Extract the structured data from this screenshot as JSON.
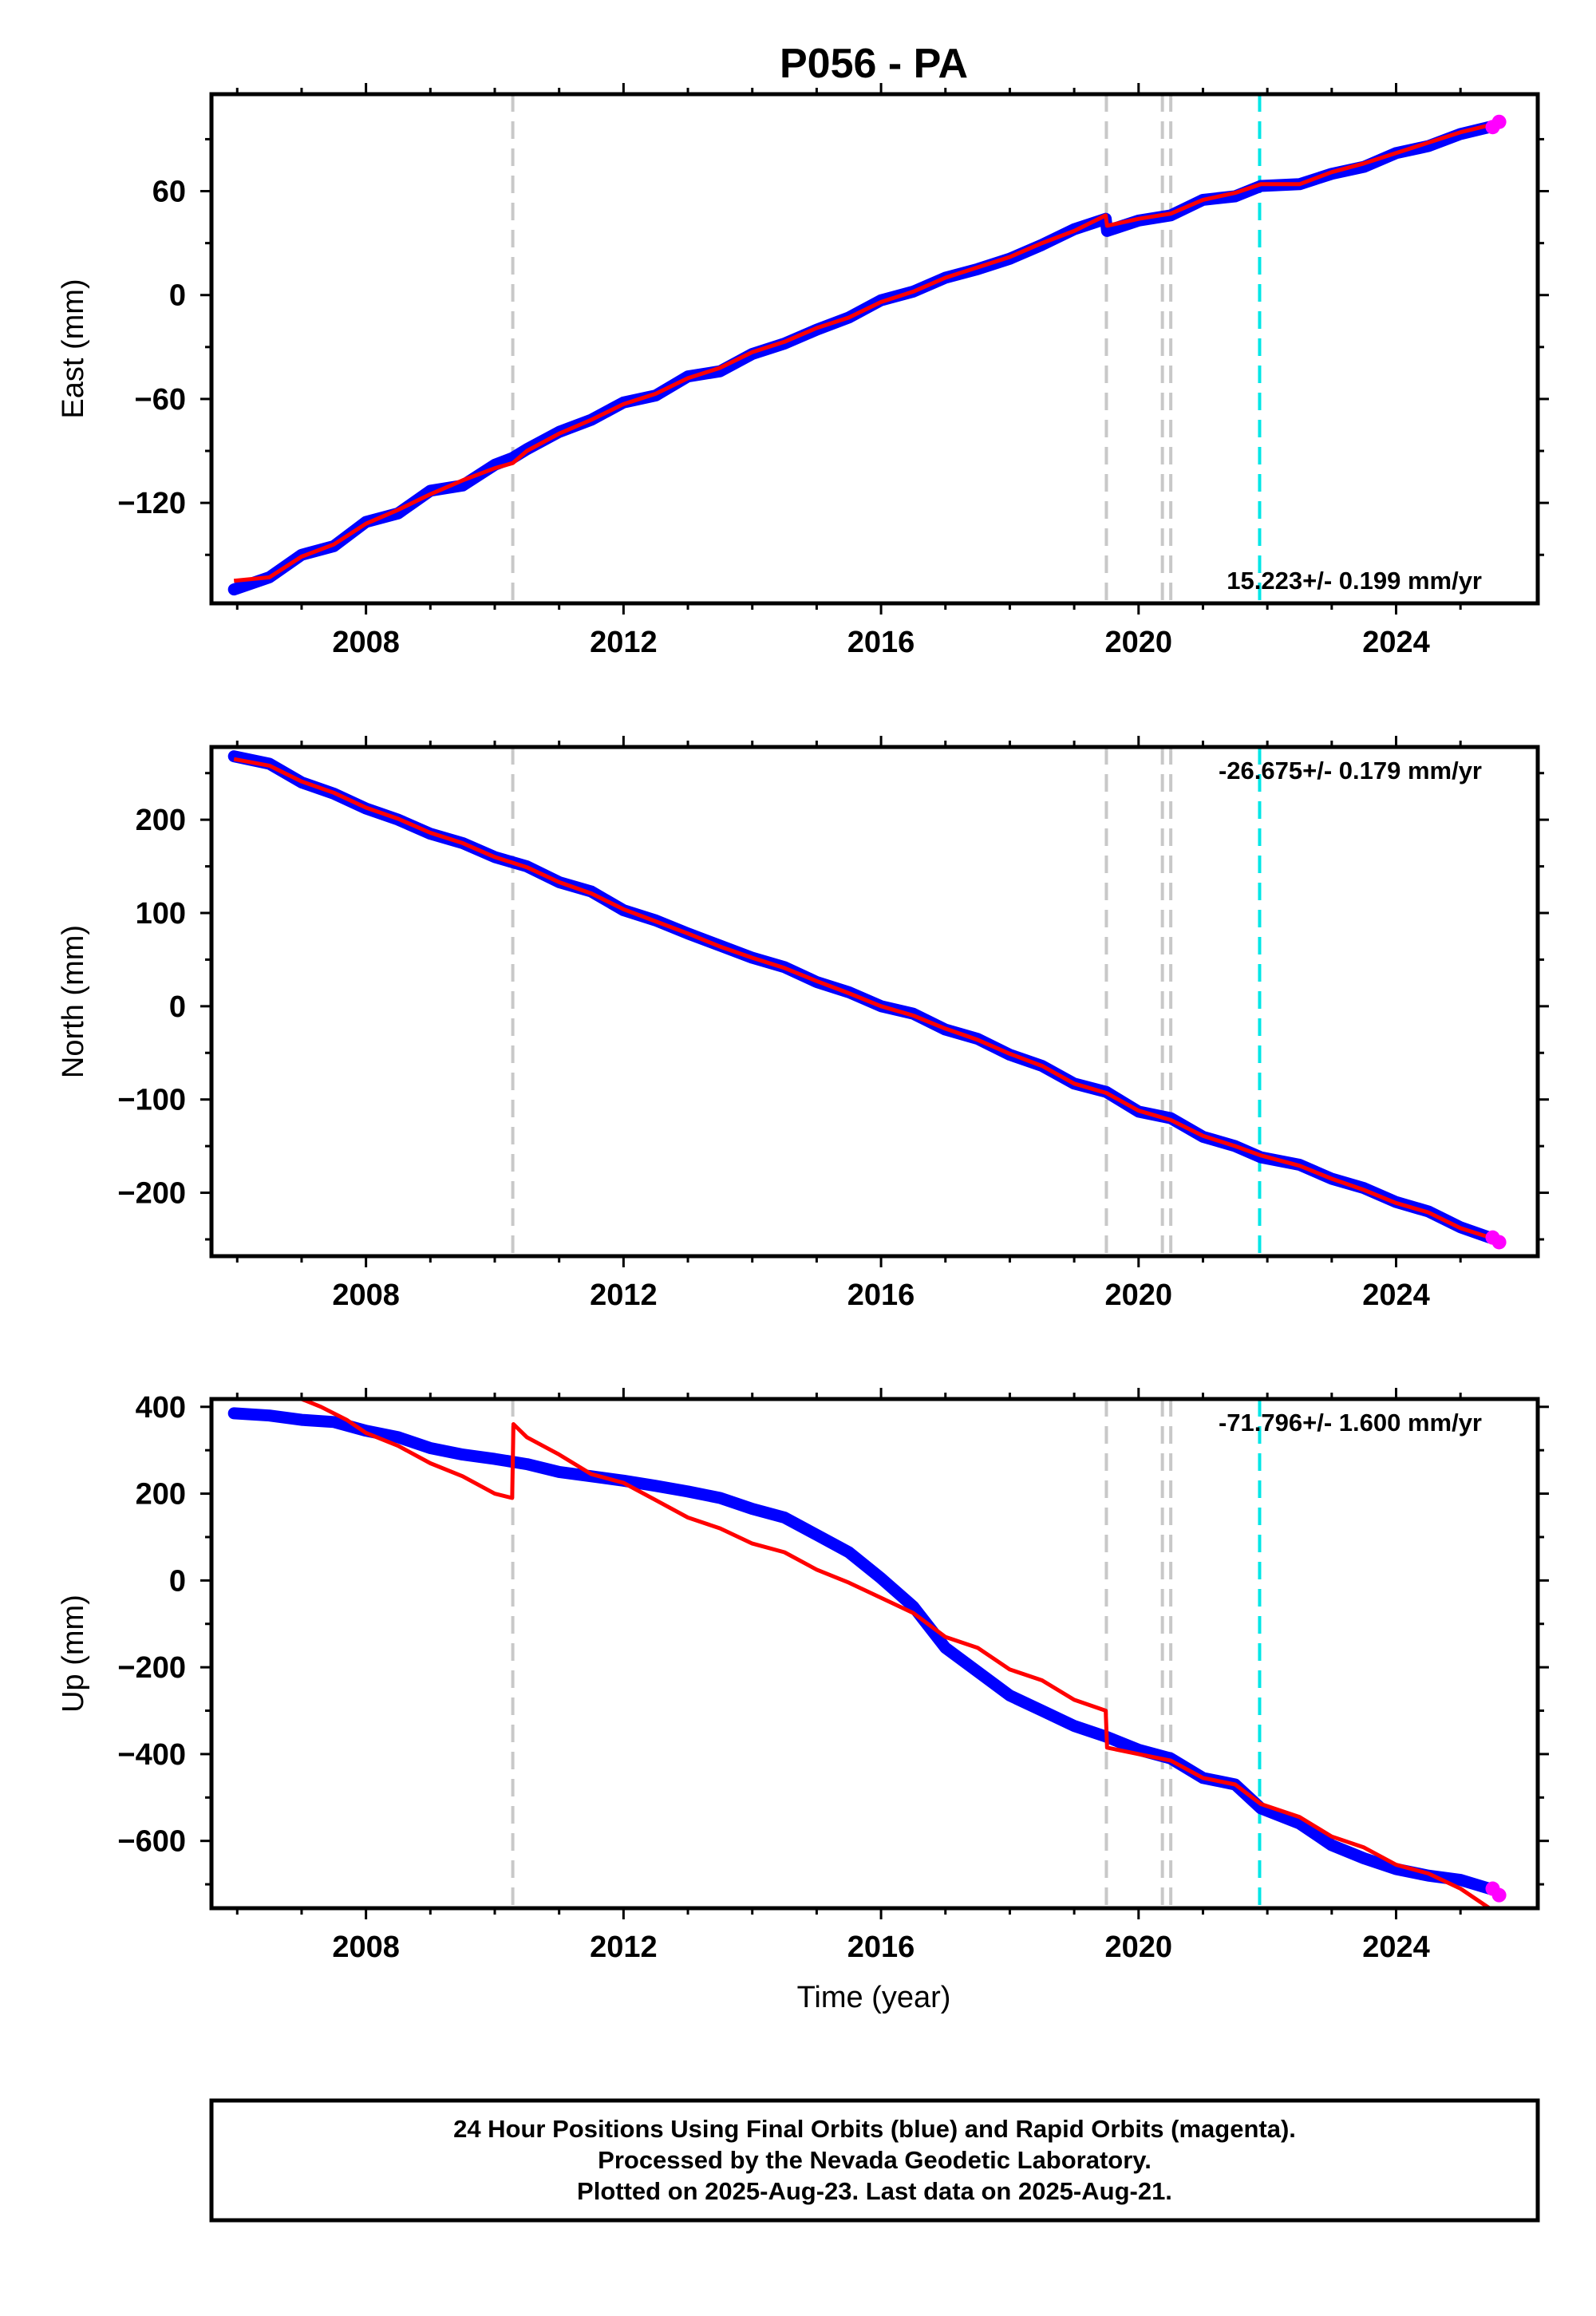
{
  "title": "P056 - PA",
  "xlabel": "Time (year)",
  "colors": {
    "final_orbits": "#0000ff",
    "rapid_orbits": "#ff00ff",
    "model": "#ff0000",
    "equipment_change": "#c8c8c8",
    "earthquake": "#00e6e6"
  },
  "footer": {
    "line1": "24 Hour Positions Using Final Orbits (blue) and Rapid Orbits (magenta).",
    "line2": "Processed by the Nevada Geodetic Laboratory.",
    "line3": "Plotted on 2025-Aug-23. Last data on 2025-Aug-21."
  },
  "chart_data": [
    {
      "type": "line",
      "ylabel": "East (mm)",
      "xlim": [
        2005.6,
        2026.2
      ],
      "ylim": [
        -178,
        116
      ],
      "xticks": [
        2008,
        2012,
        2016,
        2020,
        2024
      ],
      "yticks": [
        -120,
        -60,
        0,
        60
      ],
      "rate_label": "15.223+/- 0.199 mm/yr",
      "rate_position": "bottom-right",
      "vlines_gray": [
        2010.28,
        2019.5,
        2020.37,
        2020.5
      ],
      "vlines_cyan": [
        2021.88
      ],
      "series": [
        {
          "role": "final_orbits",
          "x": [
            2005.95,
            2006.5,
            2007.0,
            2007.5,
            2008.0,
            2008.5,
            2009.0,
            2009.5,
            2010.0,
            2010.28,
            2010.5,
            2011.0,
            2011.5,
            2012.0,
            2012.5,
            2013.0,
            2013.5,
            2014.0,
            2014.5,
            2015.0,
            2015.5,
            2016.0,
            2016.5,
            2017.0,
            2017.5,
            2018.0,
            2018.5,
            2019.0,
            2019.49,
            2019.51,
            2020.0,
            2020.5,
            2021.0,
            2021.5,
            2021.9,
            2022.5,
            2023.0,
            2023.5,
            2024.0,
            2024.5,
            2025.0,
            2025.45
          ],
          "values": [
            -170,
            -163,
            -150,
            -145,
            -131,
            -126,
            -113,
            -110,
            -98,
            -94,
            -89,
            -79,
            -72,
            -62,
            -58,
            -47,
            -44,
            -34,
            -28,
            -20,
            -13,
            -3,
            2,
            10,
            15,
            21,
            29,
            38,
            44,
            37,
            43,
            46,
            55,
            57,
            63,
            64,
            70,
            74,
            82,
            86,
            93,
            97
          ]
        },
        {
          "role": "model",
          "x": [
            2005.95,
            2006.5,
            2007.0,
            2007.5,
            2008.0,
            2008.5,
            2009.0,
            2009.5,
            2010.0,
            2010.28,
            2010.5,
            2011.0,
            2011.5,
            2012.0,
            2012.5,
            2013.0,
            2013.5,
            2014.0,
            2014.5,
            2015.0,
            2015.5,
            2016.0,
            2016.5,
            2017.0,
            2017.5,
            2018.0,
            2018.5,
            2019.0,
            2019.49,
            2019.51,
            2020.0,
            2020.5,
            2021.0,
            2021.5,
            2021.9,
            2022.5,
            2023.0,
            2023.5,
            2024.0,
            2024.5,
            2025.0,
            2025.55
          ],
          "values": [
            -165,
            -163,
            -151,
            -144,
            -132,
            -124,
            -115,
            -107,
            -100,
            -97,
            -90,
            -80,
            -72,
            -63,
            -57,
            -48,
            -42,
            -33,
            -27,
            -19,
            -13,
            -4,
            2,
            10,
            16,
            22,
            30,
            37,
            46,
            40,
            44,
            47,
            55,
            59,
            64,
            64,
            71,
            76,
            82,
            88,
            94,
            99
          ]
        },
        {
          "role": "rapid_orbits",
          "x": [
            2025.5,
            2025.6
          ],
          "values": [
            97,
            100
          ]
        }
      ]
    },
    {
      "type": "line",
      "ylabel": "North (mm)",
      "xlim": [
        2005.6,
        2026.2
      ],
      "ylim": [
        -268,
        278
      ],
      "xticks": [
        2008,
        2012,
        2016,
        2020,
        2024
      ],
      "yticks": [
        -200,
        -100,
        0,
        100,
        200
      ],
      "rate_label": "-26.675+/- 0.179 mm/yr",
      "rate_position": "top-right",
      "vlines_gray": [
        2010.28,
        2019.5,
        2020.37,
        2020.5
      ],
      "vlines_cyan": [
        2021.88
      ],
      "series": [
        {
          "role": "final_orbits",
          "x": [
            2005.95,
            2006.5,
            2007.0,
            2007.5,
            2008.0,
            2008.5,
            2009.0,
            2009.5,
            2010.0,
            2010.5,
            2011.0,
            2011.5,
            2012.0,
            2012.5,
            2013.0,
            2013.5,
            2014.0,
            2014.5,
            2015.0,
            2015.5,
            2016.0,
            2016.5,
            2017.0,
            2017.5,
            2018.0,
            2018.5,
            2019.0,
            2019.5,
            2020.0,
            2020.5,
            2021.0,
            2021.5,
            2021.9,
            2022.5,
            2023.0,
            2023.5,
            2024.0,
            2024.5,
            2025.0,
            2025.45
          ],
          "values": [
            268,
            260,
            240,
            228,
            212,
            200,
            185,
            175,
            160,
            150,
            133,
            123,
            103,
            92,
            78,
            65,
            52,
            42,
            26,
            15,
            0,
            -8,
            -25,
            -35,
            -52,
            -64,
            -83,
            -92,
            -113,
            -120,
            -140,
            -150,
            -162,
            -170,
            -185,
            -195,
            -210,
            -220,
            -237,
            -248
          ]
        },
        {
          "role": "model",
          "x": [
            2005.95,
            2006.5,
            2007.0,
            2007.5,
            2008.0,
            2008.5,
            2009.0,
            2009.5,
            2010.0,
            2010.5,
            2011.0,
            2011.5,
            2012.0,
            2012.5,
            2013.0,
            2013.5,
            2014.0,
            2014.5,
            2015.0,
            2015.5,
            2016.0,
            2016.5,
            2017.0,
            2017.5,
            2018.0,
            2018.5,
            2019.0,
            2019.5,
            2020.0,
            2020.5,
            2021.0,
            2021.5,
            2021.9,
            2022.5,
            2023.0,
            2023.5,
            2024.0,
            2024.5,
            2025.0,
            2025.55
          ],
          "values": [
            265,
            258,
            241,
            229,
            213,
            201,
            186,
            175,
            160,
            149,
            133,
            121,
            104,
            91,
            78,
            64,
            52,
            41,
            27,
            14,
            0,
            -10,
            -24,
            -36,
            -51,
            -64,
            -83,
            -93,
            -112,
            -122,
            -139,
            -150,
            -160,
            -171,
            -185,
            -197,
            -211,
            -221,
            -238,
            -250
          ]
        },
        {
          "role": "rapid_orbits",
          "x": [
            2025.5,
            2025.6
          ],
          "values": [
            -248,
            -253
          ]
        }
      ]
    },
    {
      "type": "line",
      "ylabel": "Up (mm)",
      "xlim": [
        2005.6,
        2026.2
      ],
      "ylim": [
        -755,
        418
      ],
      "xticks": [
        2008,
        2012,
        2016,
        2020,
        2024
      ],
      "yticks": [
        -600,
        -400,
        -200,
        0,
        200,
        400
      ],
      "rate_label": "-71.796+/- 1.600 mm/yr",
      "rate_position": "top-right",
      "vlines_gray": [
        2010.28,
        2019.5,
        2020.37,
        2020.5
      ],
      "vlines_cyan": [
        2021.88
      ],
      "series": [
        {
          "role": "final_orbits",
          "x": [
            2005.95,
            2006.5,
            2007.0,
            2007.5,
            2008.0,
            2008.5,
            2009.0,
            2009.5,
            2010.0,
            2010.5,
            2011.0,
            2011.5,
            2012.0,
            2012.5,
            2013.0,
            2013.5,
            2014.0,
            2014.5,
            2015.0,
            2015.5,
            2016.0,
            2016.5,
            2017.0,
            2017.5,
            2018.0,
            2018.5,
            2019.0,
            2019.5,
            2020.0,
            2020.5,
            2021.0,
            2021.5,
            2021.9,
            2022.5,
            2023.0,
            2023.5,
            2024.0,
            2024.5,
            2025.0,
            2025.45
          ],
          "values": [
            385,
            380,
            370,
            365,
            345,
            330,
            305,
            290,
            280,
            268,
            250,
            240,
            230,
            218,
            205,
            190,
            165,
            145,
            105,
            65,
            5,
            -60,
            -155,
            -210,
            -265,
            -300,
            -335,
            -360,
            -390,
            -410,
            -455,
            -470,
            -525,
            -560,
            -610,
            -640,
            -665,
            -680,
            -690,
            -710
          ]
        },
        {
          "role": "model",
          "x": [
            2005.95,
            2006.5,
            2007.0,
            2007.3,
            2007.7,
            2008.0,
            2008.5,
            2009.0,
            2009.5,
            2010.0,
            2010.27,
            2010.29,
            2010.5,
            2011.0,
            2011.5,
            2012.0,
            2012.5,
            2013.0,
            2013.5,
            2014.0,
            2014.5,
            2015.0,
            2015.5,
            2016.0,
            2016.5,
            2017.0,
            2017.5,
            2018.0,
            2018.5,
            2019.0,
            2019.49,
            2019.51,
            2020.0,
            2020.5,
            2021.0,
            2021.5,
            2021.9,
            2022.5,
            2023.0,
            2023.5,
            2024.0,
            2024.5,
            2025.0,
            2025.5
          ],
          "values": [
            430,
            425,
            418,
            400,
            370,
            340,
            310,
            270,
            240,
            200,
            190,
            360,
            330,
            290,
            245,
            225,
            185,
            145,
            120,
            85,
            65,
            25,
            -5,
            -40,
            -75,
            -130,
            -155,
            -205,
            -230,
            -275,
            -300,
            -385,
            -400,
            -415,
            -455,
            -470,
            -515,
            -545,
            -590,
            -615,
            -655,
            -675,
            -710,
            -760
          ]
        },
        {
          "role": "rapid_orbits",
          "x": [
            2025.5,
            2025.6
          ],
          "values": [
            -710,
            -725
          ]
        }
      ]
    }
  ]
}
